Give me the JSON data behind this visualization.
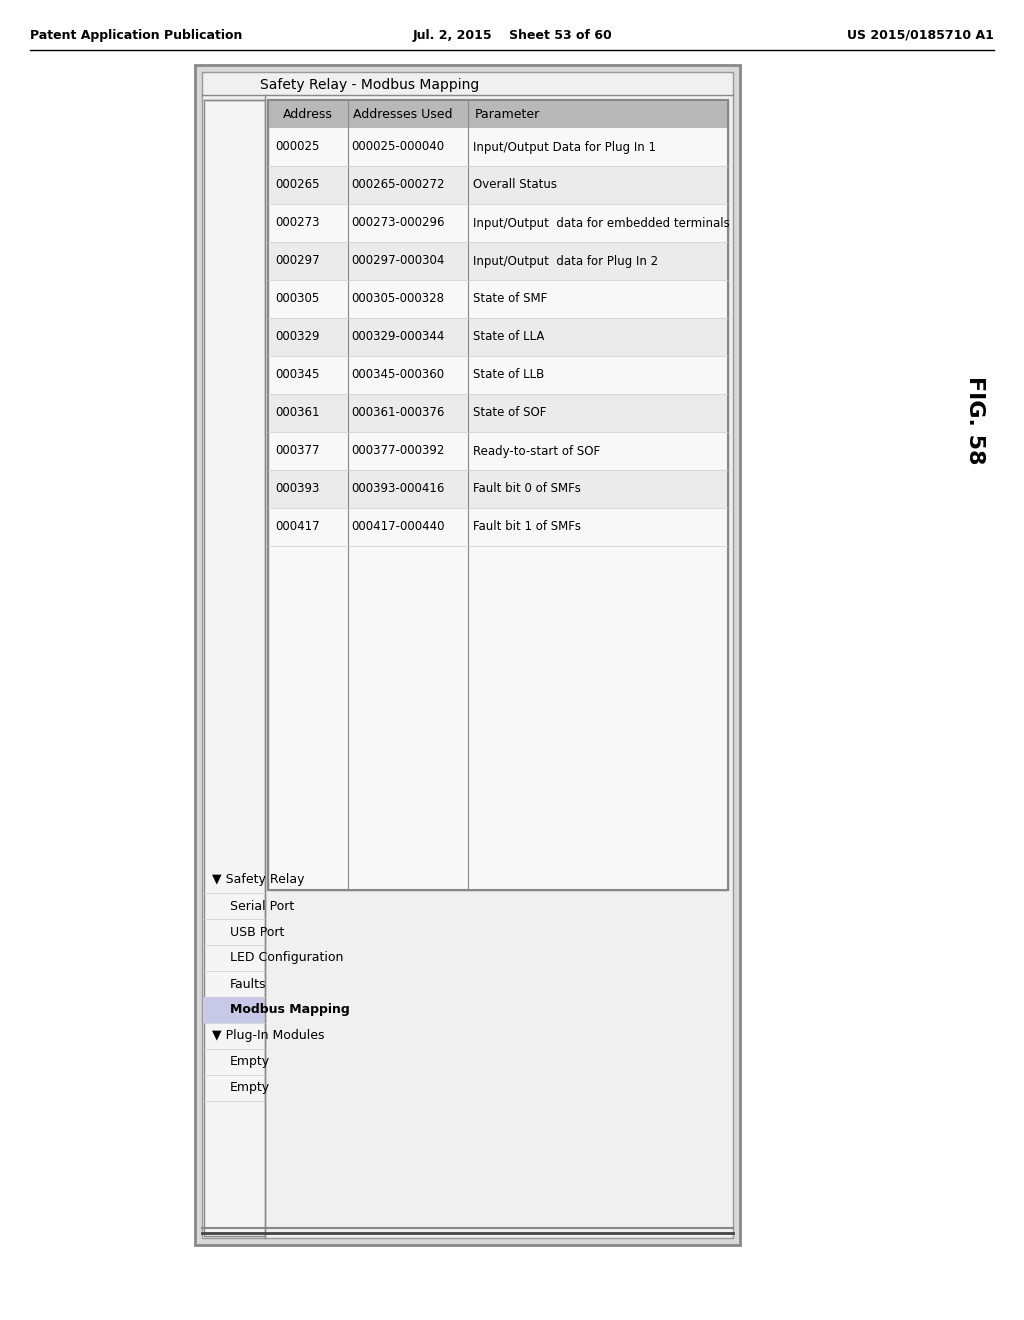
{
  "page_header": {
    "left": "Patent Application Publication",
    "center": "Jul. 2, 2015    Sheet 53 of 60",
    "right": "US 2015/0185710 A1"
  },
  "fig_label": "FIG. 58",
  "title": "Safety Relay - Modbus Mapping",
  "tree_items": [
    {
      "text": "▼ Safety Relay",
      "indent": 0,
      "bold": false
    },
    {
      "text": "Serial Port",
      "indent": 1,
      "bold": false
    },
    {
      "text": "USB Port",
      "indent": 1,
      "bold": false
    },
    {
      "text": "LED Configuration",
      "indent": 1,
      "bold": false
    },
    {
      "text": "Faults",
      "indent": 1,
      "bold": false
    },
    {
      "text": "Modbus Mapping",
      "indent": 1,
      "bold": true
    },
    {
      "text": "▼ Plug-In Modules",
      "indent": 0,
      "bold": false
    },
    {
      "text": "Empty",
      "indent": 1,
      "bold": false
    },
    {
      "text": "Empty",
      "indent": 1,
      "bold": false
    }
  ],
  "table_header": {
    "col1": "Address",
    "col2": "Addresses Used",
    "col3": "Parameter"
  },
  "table_rows": [
    {
      "address": "000025",
      "addresses_used": "000025-000040",
      "parameter": "Input/Output Data for Plug In 1"
    },
    {
      "address": "000265",
      "addresses_used": "000265-000272",
      "parameter": "Overall Status"
    },
    {
      "address": "000273",
      "addresses_used": "000273-000296",
      "parameter": "Input/Output  data for embedded terminals"
    },
    {
      "address": "000297",
      "addresses_used": "000297-000304",
      "parameter": "Input/Output  data for Plug In 2"
    },
    {
      "address": "000305",
      "addresses_used": "000305-000328",
      "parameter": "State of SMF"
    },
    {
      "address": "000329",
      "addresses_used": "000329-000344",
      "parameter": "State of LLA"
    },
    {
      "address": "000345",
      "addresses_used": "000345-000360",
      "parameter": "State of LLB"
    },
    {
      "address": "000361",
      "addresses_used": "000361-000376",
      "parameter": "State of SOF"
    },
    {
      "address": "000377",
      "addresses_used": "000377-000392",
      "parameter": "Ready-to-start of SOF"
    },
    {
      "address": "000393",
      "addresses_used": "000393-000416",
      "parameter": "Fault bit 0 of SMFs"
    },
    {
      "address": "000417",
      "addresses_used": "000417-000440",
      "parameter": "Fault bit 1 of SMFs"
    }
  ],
  "bg_color": "#ffffff",
  "header_bg": "#c0c0c0",
  "tree_bg": "#e8e8e8",
  "table_bg": "#f5f5f5",
  "outer_border": "#888888",
  "inner_border": "#aaaaaa"
}
